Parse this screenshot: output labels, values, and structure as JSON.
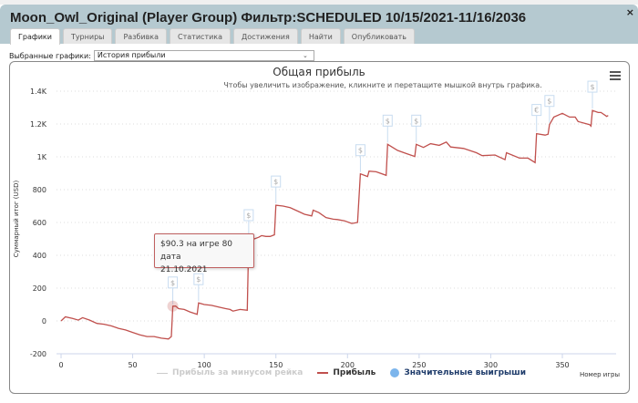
{
  "window": {
    "title": "Moon_Owl_Original (Player Group) Фильтр:SCHEDULED 10/15/2021-11/16/2036",
    "close_label": "×"
  },
  "tabs": [
    {
      "label": "Графики",
      "active": true
    },
    {
      "label": "Турниры"
    },
    {
      "label": "Разбивка"
    },
    {
      "label": "Статистика"
    },
    {
      "label": "Достижения"
    },
    {
      "label": "Найти"
    },
    {
      "label": "Опубликовать"
    }
  ],
  "chart_select": {
    "label": "Выбранные графики:",
    "value": "История прибыли"
  },
  "chart_data": {
    "type": "line",
    "title": "Общая прибыль",
    "subtitle": "Чтобы увеличить изображение, кликните и перетащите мышкой внутрь графика.",
    "xlabel": "Номер игры",
    "ylabel": "Суммарный итог (USD)",
    "xlim": [
      0,
      390
    ],
    "ylim": [
      -200,
      1450
    ],
    "xticks": [
      0,
      50,
      100,
      150,
      200,
      250,
      300,
      350
    ],
    "yticks": [
      {
        "v": -200,
        "l": "-200"
      },
      {
        "v": 0,
        "l": "0"
      },
      {
        "v": 200,
        "l": "200"
      },
      {
        "v": 400,
        "l": "400"
      },
      {
        "v": 600,
        "l": "600"
      },
      {
        "v": 800,
        "l": "800"
      },
      {
        "v": 1000,
        "l": "1K"
      },
      {
        "v": 1200,
        "l": "1.2K"
      },
      {
        "v": 1400,
        "l": "1.4K"
      }
    ],
    "grid": true,
    "series": [
      {
        "name": "Прибыль за минусом рейка",
        "color": "#cccccc",
        "visible": false,
        "points": []
      },
      {
        "name": "Прибыль",
        "color": "#c0504d",
        "points": [
          [
            0,
            0
          ],
          [
            3,
            25
          ],
          [
            8,
            15
          ],
          [
            12,
            5
          ],
          [
            15,
            20
          ],
          [
            20,
            5
          ],
          [
            25,
            -15
          ],
          [
            30,
            -20
          ],
          [
            35,
            -30
          ],
          [
            40,
            -45
          ],
          [
            45,
            -55
          ],
          [
            50,
            -70
          ],
          [
            55,
            -85
          ],
          [
            60,
            -95
          ],
          [
            65,
            -95
          ],
          [
            70,
            -105
          ],
          [
            75,
            -110
          ],
          [
            77,
            -95
          ],
          [
            78,
            90
          ],
          [
            80,
            90.3
          ],
          [
            82,
            75
          ],
          [
            86,
            70
          ],
          [
            90,
            55
          ],
          [
            95,
            40
          ],
          [
            96,
            110
          ],
          [
            100,
            100
          ],
          [
            105,
            95
          ],
          [
            110,
            85
          ],
          [
            115,
            75
          ],
          [
            118,
            70
          ],
          [
            120,
            60
          ],
          [
            125,
            70
          ],
          [
            130,
            65
          ],
          [
            131,
            500
          ],
          [
            135,
            500
          ],
          [
            138,
            510
          ],
          [
            140,
            520
          ],
          [
            143,
            515
          ],
          [
            146,
            515
          ],
          [
            149,
            525
          ],
          [
            150,
            705
          ],
          [
            155,
            700
          ],
          [
            160,
            690
          ],
          [
            165,
            670
          ],
          [
            170,
            650
          ],
          [
            175,
            640
          ],
          [
            176,
            675
          ],
          [
            180,
            660
          ],
          [
            185,
            630
          ],
          [
            190,
            620
          ],
          [
            193,
            618
          ],
          [
            198,
            610
          ],
          [
            203,
            594
          ],
          [
            207,
            600
          ],
          [
            209,
            896
          ],
          [
            214,
            880
          ],
          [
            215,
            913
          ],
          [
            220,
            909
          ],
          [
            227,
            887
          ],
          [
            228,
            1076
          ],
          [
            235,
            1039
          ],
          [
            241,
            1020
          ],
          [
            247,
            1002
          ],
          [
            248,
            1076
          ],
          [
            253,
            1057
          ],
          [
            258,
            1080
          ],
          [
            264,
            1070
          ],
          [
            269,
            1090
          ],
          [
            272,
            1060
          ],
          [
            281,
            1051
          ],
          [
            290,
            1025
          ],
          [
            294,
            1007
          ],
          [
            303,
            1011
          ],
          [
            310,
            983
          ],
          [
            311,
            1025
          ],
          [
            320,
            992
          ],
          [
            326,
            992
          ],
          [
            331,
            965
          ],
          [
            332,
            1141
          ],
          [
            338,
            1132
          ],
          [
            340,
            1137
          ],
          [
            341,
            1196
          ],
          [
            344,
            1242
          ],
          [
            350,
            1265
          ],
          [
            355,
            1242
          ],
          [
            359,
            1242
          ],
          [
            361,
            1215
          ],
          [
            369,
            1196
          ],
          [
            370,
            1187
          ],
          [
            371,
            1283
          ],
          [
            375,
            1270
          ],
          [
            377,
            1270
          ],
          [
            381,
            1246
          ],
          [
            382,
            1252
          ]
        ]
      },
      {
        "name": "Значительные выигрыши",
        "color": "#7cb5ec",
        "type": "flags",
        "points": [
          {
            "x": 78,
            "flag": "$"
          },
          {
            "x": 96,
            "flag": "$"
          },
          {
            "x": 131,
            "flag": "$"
          },
          {
            "x": 150,
            "flag": "$"
          },
          {
            "x": 209,
            "flag": "$"
          },
          {
            "x": 228,
            "flag": "$"
          },
          {
            "x": 248,
            "flag": "$"
          },
          {
            "x": 332,
            "flag": "€"
          },
          {
            "x": 341,
            "flag": "$"
          },
          {
            "x": 371,
            "flag": "$"
          }
        ]
      }
    ],
    "tooltip": {
      "line1": "$90.3 на игре 80 дата",
      "line2": "21.10.2021",
      "x": 80,
      "y": 90.3
    }
  }
}
